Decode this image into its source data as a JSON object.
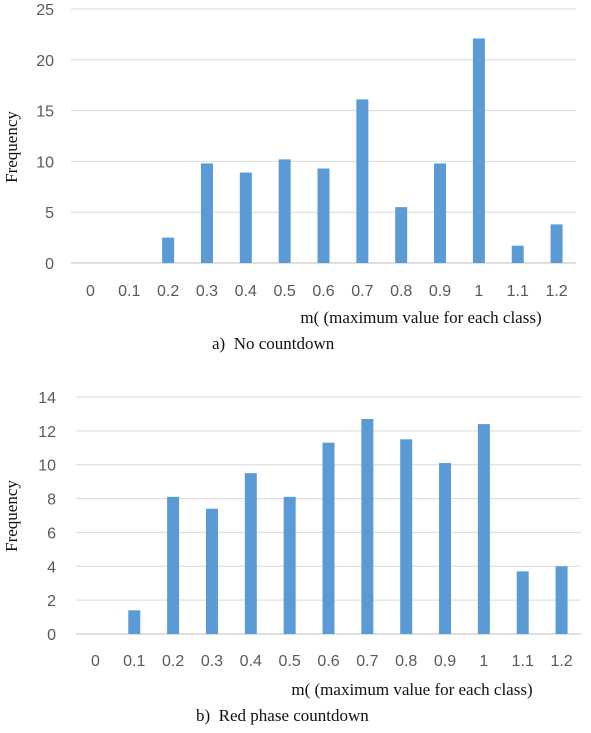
{
  "chart_data": [
    {
      "type": "bar",
      "caption": "a)  No countdown",
      "xlabel": "m( (maximum value for each class)",
      "ylabel": "Frequency",
      "ylim": [
        0,
        25
      ],
      "yticks": [
        0,
        5,
        10,
        15,
        20,
        25
      ],
      "grid": true,
      "categories": [
        "0",
        "0.1",
        "0.2",
        "0.3",
        "0.4",
        "0.5",
        "0.6",
        "0.7",
        "0.8",
        "0.9",
        "1",
        "1.1",
        "1.2"
      ],
      "values": [
        0,
        0,
        2.5,
        9.8,
        8.9,
        10.2,
        9.3,
        16.1,
        5.5,
        9.8,
        22.1,
        1.7,
        3.8
      ],
      "color": "#5b9bd5"
    },
    {
      "type": "bar",
      "caption": "b)  Red phase countdown",
      "xlabel": "m( (maximum value for each class)",
      "ylabel": "Frequency",
      "ylim": [
        0,
        14
      ],
      "yticks": [
        0,
        2,
        4,
        6,
        8,
        10,
        12,
        14
      ],
      "grid": true,
      "categories": [
        "0",
        "0.1",
        "0.2",
        "0.3",
        "0.4",
        "0.5",
        "0.6",
        "0.7",
        "0.8",
        "0.9",
        "1",
        "1.1",
        "1.2"
      ],
      "values": [
        0,
        1.4,
        8.1,
        7.4,
        9.5,
        8.1,
        11.3,
        12.7,
        11.5,
        10.1,
        12.4,
        3.7,
        4.0
      ],
      "color": "#5b9bd5"
    }
  ]
}
